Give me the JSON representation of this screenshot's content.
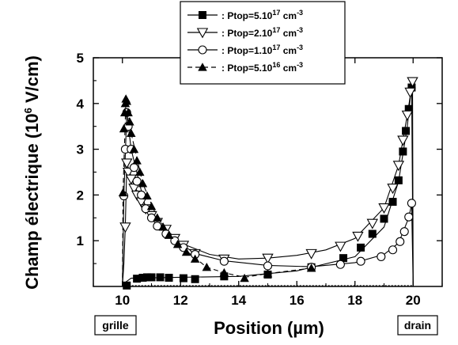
{
  "chart_data": {
    "type": "scatter",
    "xlabel": "Position (µm)",
    "ylabel_main": "Champ électrique (10",
    "ylabel_sup": "6",
    "ylabel_tail": " V/cm)",
    "xlim": [
      9,
      21
    ],
    "ylim": [
      0,
      5
    ],
    "xticks": [
      10,
      12,
      14,
      16,
      18,
      20
    ],
    "yticks": [
      1,
      2,
      3,
      4,
      5
    ],
    "grid": false,
    "legend_position": "top",
    "annotations": {
      "left_box": "grille",
      "right_box": "drain"
    },
    "series": [
      {
        "name": "Ptop=5.10^17 cm^-3",
        "legend_text": ": Ptop=5.10",
        "legend_sup": "17",
        "legend_unit": " cm",
        "legend_unit_sup": "-3",
        "marker": "square",
        "line": "solid",
        "x": [
          10.15,
          10.5,
          10.7,
          10.85,
          11.0,
          11.3,
          11.6,
          12.1,
          12.5,
          13.5,
          15.0,
          16.5,
          17.6,
          18.2,
          18.6,
          19.0,
          19.3,
          19.5,
          19.65,
          19.75,
          19.85,
          19.95
        ],
        "y": [
          0.02,
          0.17,
          0.19,
          0.2,
          0.2,
          0.2,
          0.19,
          0.18,
          0.16,
          0.22,
          0.26,
          0.42,
          0.62,
          0.85,
          1.15,
          1.48,
          1.85,
          2.32,
          2.95,
          3.4,
          3.88,
          4.35
        ]
      },
      {
        "name": "Ptop=2.10^17 cm^-3",
        "legend_text": ": Ptop=2.10",
        "legend_sup": "17",
        "legend_unit": " cm",
        "legend_unit_sup": "-3",
        "marker": "triangle-down",
        "line": "solid",
        "x": [
          10.1,
          10.15,
          10.2,
          10.3,
          10.4,
          10.5,
          10.65,
          10.8,
          11.0,
          11.2,
          11.5,
          11.8,
          12.1,
          12.5,
          13.5,
          15.0,
          16.5,
          17.5,
          18.1,
          18.6,
          19.0,
          19.3,
          19.5,
          19.65,
          19.8,
          19.9,
          19.98
        ],
        "y": [
          1.3,
          2.7,
          2.5,
          2.35,
          2.15,
          2.0,
          1.85,
          1.7,
          1.55,
          1.4,
          1.25,
          1.05,
          0.9,
          0.72,
          0.6,
          0.62,
          0.72,
          0.88,
          1.1,
          1.38,
          1.72,
          2.15,
          2.65,
          3.2,
          3.75,
          4.25,
          4.48
        ]
      },
      {
        "name": "Ptop=1.10^17 cm^-3",
        "legend_text": ": Ptop=1.10",
        "legend_sup": "17",
        "legend_unit": " cm",
        "legend_unit_sup": "-3",
        "marker": "circle",
        "line": "solid",
        "x": [
          10.05,
          10.1,
          10.15,
          10.2,
          10.3,
          10.4,
          10.5,
          10.65,
          10.8,
          11.0,
          11.2,
          11.5,
          11.8,
          12.1,
          12.5,
          13.5,
          15.0,
          16.5,
          17.5,
          18.2,
          18.9,
          19.3,
          19.55,
          19.7,
          19.85,
          19.95
        ],
        "y": [
          1.98,
          3.0,
          3.8,
          3.5,
          3.0,
          2.6,
          2.3,
          2.0,
          1.7,
          1.5,
          1.32,
          1.15,
          1.0,
          0.85,
          0.7,
          0.55,
          0.45,
          0.42,
          0.48,
          0.55,
          0.65,
          0.8,
          0.98,
          1.2,
          1.52,
          1.82
        ]
      },
      {
        "name": "Ptop=5.10^16 cm^-3",
        "legend_text": ": Ptop=5.10",
        "legend_sup": "16",
        "legend_unit": " cm",
        "legend_unit_sup": "-3",
        "marker": "triangle-up",
        "line": "dashed",
        "x": [
          10.02,
          10.05,
          10.08,
          10.1,
          10.12,
          10.15,
          10.2,
          10.25,
          10.3,
          10.4,
          10.5,
          10.6,
          10.7,
          10.85,
          11.0,
          11.2,
          11.4,
          11.6,
          11.9,
          12.2,
          12.5,
          12.9,
          13.5,
          14.2,
          15.0,
          16.5
        ],
        "y": [
          2.05,
          3.45,
          3.8,
          4.0,
          4.1,
          4.05,
          3.8,
          3.6,
          3.35,
          3.0,
          2.75,
          2.5,
          2.25,
          1.98,
          1.75,
          1.5,
          1.3,
          1.12,
          0.92,
          0.75,
          0.6,
          0.42,
          0.3,
          0.18,
          0.28,
          0.4
        ]
      }
    ]
  }
}
